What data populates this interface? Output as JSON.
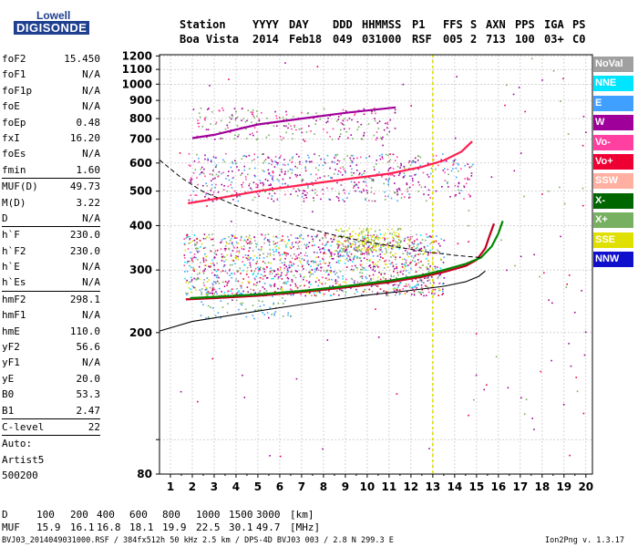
{
  "logo": {
    "line1": "Lowell",
    "line2": "DIGISONDE"
  },
  "header": {
    "row1": [
      "Station",
      "YYYY",
      "DAY",
      "DDD",
      "HHMMSS",
      "P1",
      "FFS",
      "S",
      "AXN",
      "PPS",
      "IGA",
      "PS"
    ],
    "row2": [
      "Boa Vista",
      "2014",
      "Feb18",
      "049",
      "031000",
      "RSF",
      "005",
      "2",
      "713",
      "100",
      "03+",
      "C0"
    ]
  },
  "params": {
    "group1": [
      {
        "label": "foF2",
        "value": "15.450"
      },
      {
        "label": "foF1",
        "value": "N/A"
      },
      {
        "label": "foF1p",
        "value": "N/A"
      },
      {
        "label": "foE",
        "value": "N/A"
      },
      {
        "label": "foEp",
        "value": "0.48"
      },
      {
        "label": "fxI",
        "value": "16.20"
      },
      {
        "label": "foEs",
        "value": "N/A"
      },
      {
        "label": "fmin",
        "value": "1.60"
      }
    ],
    "group2": [
      {
        "label": "MUF(D)",
        "value": "49.73"
      },
      {
        "label": "M(D)",
        "value": "3.22"
      },
      {
        "label": "D",
        "value": "N/A"
      }
    ],
    "group3": [
      {
        "label": "h`F",
        "value": "230.0"
      },
      {
        "label": "h`F2",
        "value": "230.0"
      },
      {
        "label": "h`E",
        "value": "N/A"
      },
      {
        "label": "h`Es",
        "value": "N/A"
      }
    ],
    "group4": [
      {
        "label": "hmF2",
        "value": "298.1"
      },
      {
        "label": "hmF1",
        "value": "N/A"
      },
      {
        "label": "hmE",
        "value": "110.0"
      },
      {
        "label": "yF2",
        "value": "56.6"
      },
      {
        "label": "yF1",
        "value": "N/A"
      },
      {
        "label": "yE",
        "value": "20.0"
      },
      {
        "label": "B0",
        "value": "53.3"
      },
      {
        "label": "B1",
        "value": "2.47"
      }
    ],
    "group5": [
      {
        "label": "C-level",
        "value": "22"
      }
    ],
    "auto": [
      "Auto:",
      "Artist5",
      "500200"
    ]
  },
  "legend": [
    {
      "label": "NoVal",
      "color": "#a0a0a0"
    },
    {
      "label": "NNE",
      "color": "#00e5ff"
    },
    {
      "label": "E",
      "color": "#3fa0ff"
    },
    {
      "label": "W",
      "color": "#a0009a"
    },
    {
      "label": "Vo-",
      "color": "#ff40a0"
    },
    {
      "label": "Vo+",
      "color": "#ee0033"
    },
    {
      "label": "SSW",
      "color": "#ffb0a0"
    },
    {
      "label": "X-",
      "color": "#006600"
    },
    {
      "label": "X+",
      "color": "#77b060"
    },
    {
      "label": "SSE",
      "color": "#e0e000"
    },
    {
      "label": "NNW",
      "color": "#1010cc"
    }
  ],
  "footer": {
    "d_label": "D",
    "d_values": [
      "100",
      "200",
      "400",
      "600",
      "800",
      "1000",
      "1500",
      "3000",
      "[km]"
    ],
    "muf_label": "MUF",
    "muf_values": [
      "15.9",
      "16.1",
      "16.8",
      "18.1",
      "19.9",
      "22.5",
      "30.1",
      "49.7",
      "[MHz]"
    ],
    "file_info": "BVJ03_2014049031000.RSF / 384fx512h 50 kHz 2.5 km / DPS-4D BVJ03 003 / 2.8 N 299.3 E",
    "version": "Ion2Png v. 1.3.17"
  },
  "chart_data": {
    "type": "scatter",
    "title": "",
    "xlabel": "",
    "ylabel": "",
    "xlim": [
      0.5,
      20.3
    ],
    "ylim": [
      80,
      1210
    ],
    "xticks": [
      1,
      2,
      3,
      4,
      5,
      6,
      7,
      8,
      9,
      10,
      11,
      12,
      13,
      14,
      15,
      16,
      17,
      18,
      19,
      20
    ],
    "yticks": [
      80,
      100,
      200,
      300,
      400,
      500,
      600,
      700,
      800,
      900,
      1000,
      1100,
      1200
    ],
    "ytick_labels": [
      "80",
      "",
      "200",
      "300",
      "400",
      "500",
      "600",
      "700",
      "800",
      "900",
      "1000",
      "1100",
      "1200"
    ],
    "y_scale": "log",
    "grid": true,
    "legend_position": "right",
    "traces": [
      {
        "name": "O-trace",
        "color": "#c00020",
        "x": [
          1.7,
          3,
          5,
          7,
          9,
          11,
          12.5,
          13.5,
          14.5,
          15,
          15.4,
          15.6,
          15.8
        ],
        "y": [
          248,
          250,
          254,
          260,
          268,
          277,
          287,
          296,
          308,
          320,
          345,
          375,
          405
        ]
      },
      {
        "name": "X-trace",
        "color": "#008800",
        "x": [
          1.9,
          3,
          5,
          7,
          9,
          11,
          12.5,
          13.5,
          14.5,
          15.2,
          15.7,
          16.0,
          16.2
        ],
        "y": [
          250,
          252,
          256,
          262,
          270,
          280,
          290,
          300,
          312,
          325,
          350,
          380,
          412
        ]
      },
      {
        "name": "F2-multihop",
        "color": "#ff2050",
        "x": [
          1.8,
          3,
          5,
          7,
          9,
          11,
          12.5,
          13.5,
          14.3,
          14.8
        ],
        "y": [
          462,
          475,
          500,
          520,
          540,
          560,
          585,
          610,
          645,
          690
        ]
      },
      {
        "name": "3rd-hop",
        "color": "#a0009a",
        "x": [
          2,
          3,
          5,
          7,
          9,
          11.3
        ],
        "y": [
          705,
          720,
          770,
          800,
          830,
          860
        ]
      }
    ],
    "profile_curve": {
      "color": "#000000",
      "x": [
        0.5,
        2,
        4,
        6,
        8,
        10,
        12,
        13.5,
        14.5,
        15.1,
        15.4
      ],
      "y": [
        202,
        215,
        225,
        235,
        245,
        255,
        263,
        270,
        278,
        288,
        298
      ]
    },
    "mufd_curve": {
      "color": "#000000",
      "style": "dashed",
      "x": [
        0.5,
        1.5,
        2.5,
        4,
        5.5,
        7,
        8.5,
        10,
        11.5,
        12.8,
        14,
        15.2
      ],
      "y": [
        612,
        545,
        498,
        455,
        422,
        397,
        376,
        360,
        347,
        337,
        330,
        325
      ]
    },
    "cursor": {
      "x": 13,
      "color": "#e0e000"
    }
  }
}
